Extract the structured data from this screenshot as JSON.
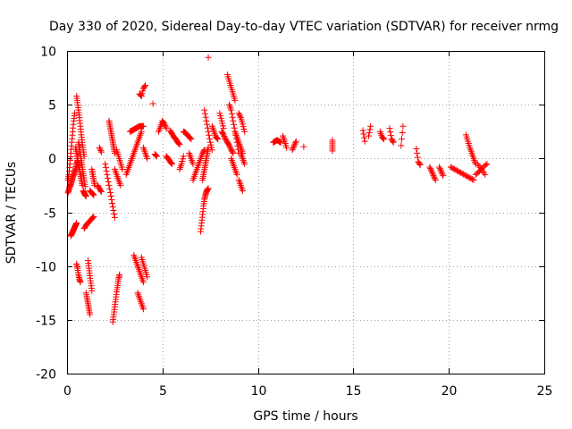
{
  "chart_data": {
    "type": "scatter",
    "title": "Day 330 of 2020, Sidereal Day-to-day VTEC variation (SDTVAR) for receiver nrmg",
    "xlabel": "GPS time / hours",
    "ylabel": "SDTVAR / TECUs",
    "xlim": [
      0,
      25
    ],
    "ylim": [
      -20,
      10
    ],
    "xticks": [
      "0",
      "5",
      "10",
      "15",
      "20",
      "25"
    ],
    "yticks": [
      "10",
      "5",
      "0",
      "-5",
      "-10",
      "-15",
      "-20"
    ],
    "grid": true,
    "marker": "+",
    "color": "#ff0000",
    "series": [
      {
        "name": "SDTVAR",
        "tracks": [
          {
            "x": [
              0.05,
              0.1,
              0.15,
              0.2,
              0.25,
              0.3,
              0.35,
              0.4
            ],
            "y": [
              -2.0,
              -1.5,
              -0.5,
              0.5,
              1.5,
              2.5,
              3.5,
              4.2
            ]
          },
          {
            "x": [
              0.05,
              0.1,
              0.15,
              0.2,
              0.25,
              0.3,
              0.35,
              0.4,
              0.45,
              0.5,
              0.55
            ],
            "y": [
              -3.2,
              -2.9,
              -2.6,
              -2.4,
              -2.1,
              -1.8,
              -1.5,
              -1.2,
              -0.9,
              -0.5,
              -0.2
            ]
          },
          {
            "x": [
              0.2,
              0.25,
              0.3,
              0.35,
              0.4,
              0.45,
              0.5
            ],
            "y": [
              -7.2,
              -7.0,
              -6.8,
              -6.6,
              -6.4,
              -6.2,
              -6.0
            ]
          },
          {
            "x": [
              0.45,
              0.5,
              0.55,
              0.6,
              0.65,
              0.7,
              0.75,
              0.8
            ],
            "y": [
              1.0,
              0.5,
              0.0,
              -0.5,
              -1.0,
              -1.5,
              -2.0,
              -2.5
            ]
          },
          {
            "x": [
              0.5,
              0.55,
              0.6,
              0.65,
              0.7,
              0.75,
              0.8,
              0.85,
              0.9
            ],
            "y": [
              5.8,
              5.2,
              4.5,
              3.8,
              3.0,
              2.2,
              1.5,
              0.8,
              0.2
            ]
          },
          {
            "x": [
              0.5,
              0.55,
              0.6,
              0.65,
              0.7
            ],
            "y": [
              -9.8,
              -10.2,
              -10.8,
              -11.2,
              -11.5
            ]
          },
          {
            "x": [
              0.6,
              0.65,
              0.7,
              0.75,
              0.8,
              0.85,
              0.9,
              0.95
            ],
            "y": [
              1.5,
              1.0,
              0.4,
              -0.2,
              -0.8,
              -1.4,
              -2.0,
              -2.6
            ]
          },
          {
            "x": [
              0.85,
              0.9,
              0.95,
              1.0
            ],
            "y": [
              -3.0,
              -3.2,
              -3.4,
              -3.5
            ]
          },
          {
            "x": [
              1.0,
              1.05,
              1.1,
              1.15,
              1.2
            ],
            "y": [
              -12.5,
              -13.0,
              -13.5,
              -14.0,
              -14.5
            ]
          },
          {
            "x": [
              1.1,
              1.15,
              1.2,
              1.25,
              1.3
            ],
            "y": [
              -9.5,
              -10.2,
              -10.9,
              -11.6,
              -12.3
            ]
          },
          {
            "x": [
              0.9,
              1.0,
              1.1,
              1.2,
              1.3,
              1.4
            ],
            "y": [
              -6.5,
              -6.2,
              -6.0,
              -5.8,
              -5.6,
              -5.4
            ]
          },
          {
            "x": [
              1.2,
              1.3,
              1.4
            ],
            "y": [
              -3.0,
              -3.2,
              -3.4
            ]
          },
          {
            "x": [
              1.3,
              1.35,
              1.4,
              1.45
            ],
            "y": [
              -1.0,
              -1.5,
              -2.0,
              -2.5
            ]
          },
          {
            "x": [
              1.6,
              1.7,
              1.8
            ],
            "y": [
              -2.5,
              -2.8,
              -3.1
            ]
          },
          {
            "x": [
              1.7,
              1.8
            ],
            "y": [
              1.0,
              0.6
            ]
          },
          {
            "x": [
              2.0,
              2.1,
              2.2,
              2.3,
              2.4,
              2.5
            ],
            "y": [
              -0.5,
              -1.5,
              -2.5,
              -3.5,
              -4.5,
              -5.5
            ]
          },
          {
            "x": [
              2.2,
              2.25,
              2.3,
              2.35,
              2.4,
              2.45,
              2.5
            ],
            "y": [
              3.5,
              3.0,
              2.5,
              2.0,
              1.5,
              1.0,
              0.5
            ]
          },
          {
            "x": [
              2.4,
              2.45,
              2.5,
              2.55,
              2.6,
              2.65,
              2.7,
              2.75
            ],
            "y": [
              -15.2,
              -14.5,
              -13.8,
              -13.1,
              -12.4,
              -11.8,
              -11.2,
              -10.8
            ]
          },
          {
            "x": [
              2.5,
              2.6,
              2.7,
              2.8
            ],
            "y": [
              -1.0,
              -1.5,
              -2.0,
              -2.5
            ]
          },
          {
            "x": [
              2.6,
              2.7,
              2.8,
              2.9
            ],
            "y": [
              0.8,
              0.2,
              -0.4,
              -1.0
            ]
          },
          {
            "x": [
              3.1,
              3.2,
              3.3,
              3.4,
              3.5,
              3.6,
              3.7,
              3.8,
              3.9
            ],
            "y": [
              -1.5,
              -1.0,
              -0.5,
              0.0,
              0.5,
              1.0,
              1.5,
              2.0,
              2.5
            ]
          },
          {
            "x": [
              3.3,
              3.4,
              3.5,
              3.6,
              3.7,
              3.8,
              3.9,
              4.0
            ],
            "y": [
              2.5,
              2.6,
              2.7,
              2.8,
              2.9,
              3.0,
              3.0,
              3.0
            ]
          },
          {
            "x": [
              3.5,
              3.6,
              3.7,
              3.8,
              3.9,
              4.0
            ],
            "y": [
              -9.0,
              -9.5,
              -10.0,
              -10.5,
              -11.0,
              -11.5
            ]
          },
          {
            "x": [
              3.7,
              3.8,
              3.9,
              4.0
            ],
            "y": [
              -12.5,
              -13.0,
              -13.5,
              -14.0
            ]
          },
          {
            "x": [
              3.8,
              3.9,
              4.0,
              4.1
            ],
            "y": [
              6.0,
              5.8,
              6.5,
              6.8
            ]
          },
          {
            "x": [
              3.9,
              4.0,
              4.1,
              4.2
            ],
            "y": [
              -9.2,
              -9.8,
              -10.4,
              -11.0
            ]
          },
          {
            "x": [
              4.0,
              4.1,
              4.2
            ],
            "y": [
              1.0,
              0.5,
              0.0
            ]
          },
          {
            "x": [
              4.6,
              4.7
            ],
            "y": [
              0.4,
              0.2
            ]
          },
          {
            "x": [
              4.5
            ],
            "y": [
              5.1
            ]
          },
          {
            "x": [
              4.8,
              4.9,
              5.0,
              5.1,
              5.2
            ],
            "y": [
              2.5,
              3.0,
              3.5,
              3.2,
              2.8
            ]
          },
          {
            "x": [
              5.2,
              5.3,
              5.4,
              5.5
            ],
            "y": [
              0.2,
              0.0,
              -0.3,
              -0.5
            ]
          },
          {
            "x": [
              5.4,
              5.5,
              5.6,
              5.7,
              5.8,
              5.9
            ],
            "y": [
              2.6,
              2.3,
              2.0,
              1.8,
              1.5,
              1.3
            ]
          },
          {
            "x": [
              5.9,
              6.0,
              6.1
            ],
            "y": [
              -1.0,
              -0.5,
              0.2
            ]
          },
          {
            "x": [
              6.1,
              6.2,
              6.3,
              6.4,
              6.5
            ],
            "y": [
              2.5,
              2.4,
              2.2,
              2.0,
              1.8
            ]
          },
          {
            "x": [
              6.4,
              6.5,
              6.6
            ],
            "y": [
              0.5,
              0.0,
              -0.5
            ]
          },
          {
            "x": [
              6.6,
              6.7,
              6.8,
              6.9,
              7.0,
              7.1,
              7.2
            ],
            "y": [
              -2.0,
              -1.5,
              -1.0,
              -0.5,
              0.0,
              0.5,
              0.8
            ]
          },
          {
            "x": [
              7.0,
              7.05,
              7.1,
              7.15,
              7.2,
              7.25,
              7.3,
              7.35,
              7.4
            ],
            "y": [
              -6.8,
              -6.0,
              -5.2,
              -4.4,
              -3.8,
              -3.4,
              -3.1,
              -2.9,
              -2.8
            ]
          },
          {
            "x": [
              7.1,
              7.15,
              7.2,
              7.25,
              7.3,
              7.35,
              7.4
            ],
            "y": [
              -2.0,
              -1.5,
              -1.0,
              -0.5,
              0.0,
              0.5,
              1.0
            ]
          },
          {
            "x": [
              7.2,
              7.3,
              7.4,
              7.5,
              7.6
            ],
            "y": [
              4.5,
              3.5,
              2.5,
              1.5,
              0.8
            ]
          },
          {
            "x": [
              7.4
            ],
            "y": [
              9.4
            ]
          },
          {
            "x": [
              7.6,
              7.7,
              7.8,
              7.9
            ],
            "y": [
              3.0,
              2.5,
              2.0,
              1.8
            ]
          },
          {
            "x": [
              8.0,
              8.1,
              8.2
            ],
            "y": [
              4.2,
              3.5,
              2.8
            ]
          },
          {
            "x": [
              8.1,
              8.2,
              8.3,
              8.4,
              8.5,
              8.6,
              8.7
            ],
            "y": [
              2.5,
              2.2,
              1.8,
              1.5,
              1.2,
              0.8,
              0.5
            ]
          },
          {
            "x": [
              8.4,
              8.5,
              8.6,
              8.7,
              8.8
            ],
            "y": [
              7.8,
              7.2,
              6.6,
              6.0,
              5.4
            ]
          },
          {
            "x": [
              8.5,
              8.6,
              8.7,
              8.8,
              8.9,
              9.0
            ],
            "y": [
              5.0,
              4.5,
              3.5,
              2.5,
              1.5,
              0.5
            ]
          },
          {
            "x": [
              8.6,
              8.7,
              8.8,
              8.9
            ],
            "y": [
              0.0,
              -0.5,
              -1.0,
              -1.5
            ]
          },
          {
            "x": [
              8.8,
              8.9,
              9.0,
              9.1,
              9.2
            ],
            "y": [
              2.5,
              2.0,
              1.5,
              1.0,
              0.5
            ]
          },
          {
            "x": [
              9.0,
              9.1,
              9.2
            ],
            "y": [
              -2.0,
              -2.5,
              -3.0
            ]
          },
          {
            "x": [
              9.0,
              9.1,
              9.2,
              9.3
            ],
            "y": [
              4.2,
              3.8,
              3.2,
              2.5
            ]
          },
          {
            "x": [
              9.1,
              9.2,
              9.3
            ],
            "y": [
              0.5,
              0.0,
              -0.5
            ]
          },
          {
            "x": [
              10.8,
              10.9,
              11.0,
              11.1,
              11.2
            ],
            "y": [
              1.5,
              1.6,
              1.7,
              1.6,
              1.5
            ]
          },
          {
            "x": [
              11.3,
              11.4,
              11.5
            ],
            "y": [
              2.1,
              1.6,
              1.0
            ]
          },
          {
            "x": [
              11.8,
              11.9,
              12.0
            ],
            "y": [
              0.8,
              1.2,
              1.6
            ]
          },
          {
            "x": [
              12.4
            ],
            "y": [
              1.1
            ]
          },
          {
            "x": [
              13.9,
              13.9,
              13.9
            ],
            "y": [
              1.7,
              1.2,
              0.7
            ]
          },
          {
            "x": [
              15.5,
              15.6
            ],
            "y": [
              2.6,
              1.6
            ]
          },
          {
            "x": [
              15.8,
              15.9
            ],
            "y": [
              2.1,
              3.0
            ]
          },
          {
            "x": [
              16.4,
              16.5,
              16.6
            ],
            "y": [
              2.5,
              2.0,
              1.8
            ]
          },
          {
            "x": [
              16.9,
              17.0,
              17.1
            ],
            "y": [
              2.8,
              1.8,
              1.5
            ]
          },
          {
            "x": [
              17.5,
              17.6
            ],
            "y": [
              1.2,
              3.0
            ]
          },
          {
            "x": [
              18.3,
              18.4,
              18.5
            ],
            "y": [
              0.9,
              -0.3,
              -0.6
            ]
          },
          {
            "x": [
              19.0,
              19.1,
              19.2,
              19.3
            ],
            "y": [
              -0.8,
              -1.2,
              -1.6,
              -2.0
            ]
          },
          {
            "x": [
              19.5,
              19.6,
              19.7
            ],
            "y": [
              -0.8,
              -1.2,
              -1.6
            ]
          },
          {
            "x": [
              20.1,
              20.3,
              20.5,
              20.7,
              20.9,
              21.1,
              21.3
            ],
            "y": [
              -0.8,
              -1.0,
              -1.2,
              -1.4,
              -1.6,
              -1.8,
              -2.0
            ]
          },
          {
            "x": [
              20.9,
              21.0,
              21.1,
              21.2,
              21.3,
              21.4
            ],
            "y": [
              2.2,
              1.6,
              1.0,
              0.5,
              0.0,
              -0.5
            ]
          },
          {
            "x": [
              21.4,
              21.6,
              21.8,
              22.0
            ],
            "y": [
              -1.5,
              -1.2,
              -0.8,
              -0.5
            ]
          },
          {
            "x": [
              21.5,
              21.7,
              21.9
            ],
            "y": [
              -0.5,
              -1.0,
              -1.5
            ]
          }
        ]
      }
    ]
  }
}
